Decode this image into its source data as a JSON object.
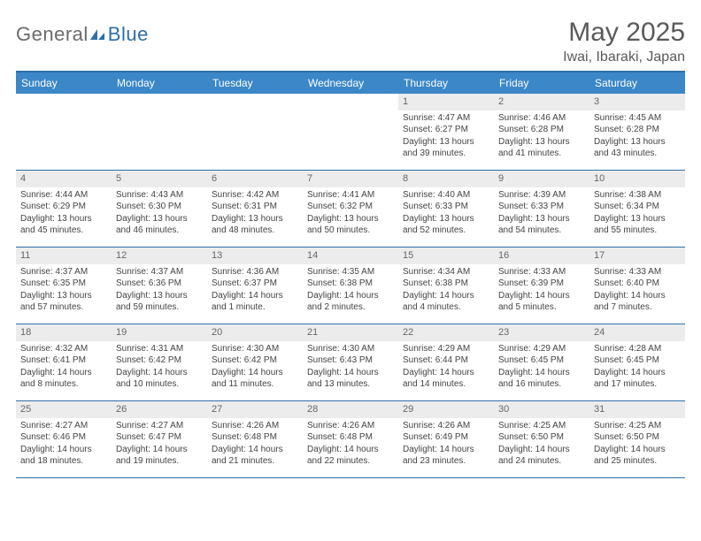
{
  "brand": {
    "text1": "General",
    "text2": "Blue",
    "icon_color": "#2f6fa8"
  },
  "title": "May 2025",
  "location": "Iwai, Ibaraki, Japan",
  "colors": {
    "header_bg": "#3b87c8",
    "border": "#2f6fa8",
    "daynum_bg": "#ececec",
    "text": "#444444"
  },
  "weekdays": [
    "Sunday",
    "Monday",
    "Tuesday",
    "Wednesday",
    "Thursday",
    "Friday",
    "Saturday"
  ],
  "weeks": [
    [
      {
        "n": "",
        "sr": "",
        "ss": "",
        "dl1": "",
        "dl2": ""
      },
      {
        "n": "",
        "sr": "",
        "ss": "",
        "dl1": "",
        "dl2": ""
      },
      {
        "n": "",
        "sr": "",
        "ss": "",
        "dl1": "",
        "dl2": ""
      },
      {
        "n": "",
        "sr": "",
        "ss": "",
        "dl1": "",
        "dl2": ""
      },
      {
        "n": "1",
        "sr": "Sunrise: 4:47 AM",
        "ss": "Sunset: 6:27 PM",
        "dl1": "Daylight: 13 hours",
        "dl2": "and 39 minutes."
      },
      {
        "n": "2",
        "sr": "Sunrise: 4:46 AM",
        "ss": "Sunset: 6:28 PM",
        "dl1": "Daylight: 13 hours",
        "dl2": "and 41 minutes."
      },
      {
        "n": "3",
        "sr": "Sunrise: 4:45 AM",
        "ss": "Sunset: 6:28 PM",
        "dl1": "Daylight: 13 hours",
        "dl2": "and 43 minutes."
      }
    ],
    [
      {
        "n": "4",
        "sr": "Sunrise: 4:44 AM",
        "ss": "Sunset: 6:29 PM",
        "dl1": "Daylight: 13 hours",
        "dl2": "and 45 minutes."
      },
      {
        "n": "5",
        "sr": "Sunrise: 4:43 AM",
        "ss": "Sunset: 6:30 PM",
        "dl1": "Daylight: 13 hours",
        "dl2": "and 46 minutes."
      },
      {
        "n": "6",
        "sr": "Sunrise: 4:42 AM",
        "ss": "Sunset: 6:31 PM",
        "dl1": "Daylight: 13 hours",
        "dl2": "and 48 minutes."
      },
      {
        "n": "7",
        "sr": "Sunrise: 4:41 AM",
        "ss": "Sunset: 6:32 PM",
        "dl1": "Daylight: 13 hours",
        "dl2": "and 50 minutes."
      },
      {
        "n": "8",
        "sr": "Sunrise: 4:40 AM",
        "ss": "Sunset: 6:33 PM",
        "dl1": "Daylight: 13 hours",
        "dl2": "and 52 minutes."
      },
      {
        "n": "9",
        "sr": "Sunrise: 4:39 AM",
        "ss": "Sunset: 6:33 PM",
        "dl1": "Daylight: 13 hours",
        "dl2": "and 54 minutes."
      },
      {
        "n": "10",
        "sr": "Sunrise: 4:38 AM",
        "ss": "Sunset: 6:34 PM",
        "dl1": "Daylight: 13 hours",
        "dl2": "and 55 minutes."
      }
    ],
    [
      {
        "n": "11",
        "sr": "Sunrise: 4:37 AM",
        "ss": "Sunset: 6:35 PM",
        "dl1": "Daylight: 13 hours",
        "dl2": "and 57 minutes."
      },
      {
        "n": "12",
        "sr": "Sunrise: 4:37 AM",
        "ss": "Sunset: 6:36 PM",
        "dl1": "Daylight: 13 hours",
        "dl2": "and 59 minutes."
      },
      {
        "n": "13",
        "sr": "Sunrise: 4:36 AM",
        "ss": "Sunset: 6:37 PM",
        "dl1": "Daylight: 14 hours",
        "dl2": "and 1 minute."
      },
      {
        "n": "14",
        "sr": "Sunrise: 4:35 AM",
        "ss": "Sunset: 6:38 PM",
        "dl1": "Daylight: 14 hours",
        "dl2": "and 2 minutes."
      },
      {
        "n": "15",
        "sr": "Sunrise: 4:34 AM",
        "ss": "Sunset: 6:38 PM",
        "dl1": "Daylight: 14 hours",
        "dl2": "and 4 minutes."
      },
      {
        "n": "16",
        "sr": "Sunrise: 4:33 AM",
        "ss": "Sunset: 6:39 PM",
        "dl1": "Daylight: 14 hours",
        "dl2": "and 5 minutes."
      },
      {
        "n": "17",
        "sr": "Sunrise: 4:33 AM",
        "ss": "Sunset: 6:40 PM",
        "dl1": "Daylight: 14 hours",
        "dl2": "and 7 minutes."
      }
    ],
    [
      {
        "n": "18",
        "sr": "Sunrise: 4:32 AM",
        "ss": "Sunset: 6:41 PM",
        "dl1": "Daylight: 14 hours",
        "dl2": "and 8 minutes."
      },
      {
        "n": "19",
        "sr": "Sunrise: 4:31 AM",
        "ss": "Sunset: 6:42 PM",
        "dl1": "Daylight: 14 hours",
        "dl2": "and 10 minutes."
      },
      {
        "n": "20",
        "sr": "Sunrise: 4:30 AM",
        "ss": "Sunset: 6:42 PM",
        "dl1": "Daylight: 14 hours",
        "dl2": "and 11 minutes."
      },
      {
        "n": "21",
        "sr": "Sunrise: 4:30 AM",
        "ss": "Sunset: 6:43 PM",
        "dl1": "Daylight: 14 hours",
        "dl2": "and 13 minutes."
      },
      {
        "n": "22",
        "sr": "Sunrise: 4:29 AM",
        "ss": "Sunset: 6:44 PM",
        "dl1": "Daylight: 14 hours",
        "dl2": "and 14 minutes."
      },
      {
        "n": "23",
        "sr": "Sunrise: 4:29 AM",
        "ss": "Sunset: 6:45 PM",
        "dl1": "Daylight: 14 hours",
        "dl2": "and 16 minutes."
      },
      {
        "n": "24",
        "sr": "Sunrise: 4:28 AM",
        "ss": "Sunset: 6:45 PM",
        "dl1": "Daylight: 14 hours",
        "dl2": "and 17 minutes."
      }
    ],
    [
      {
        "n": "25",
        "sr": "Sunrise: 4:27 AM",
        "ss": "Sunset: 6:46 PM",
        "dl1": "Daylight: 14 hours",
        "dl2": "and 18 minutes."
      },
      {
        "n": "26",
        "sr": "Sunrise: 4:27 AM",
        "ss": "Sunset: 6:47 PM",
        "dl1": "Daylight: 14 hours",
        "dl2": "and 19 minutes."
      },
      {
        "n": "27",
        "sr": "Sunrise: 4:26 AM",
        "ss": "Sunset: 6:48 PM",
        "dl1": "Daylight: 14 hours",
        "dl2": "and 21 minutes."
      },
      {
        "n": "28",
        "sr": "Sunrise: 4:26 AM",
        "ss": "Sunset: 6:48 PM",
        "dl1": "Daylight: 14 hours",
        "dl2": "and 22 minutes."
      },
      {
        "n": "29",
        "sr": "Sunrise: 4:26 AM",
        "ss": "Sunset: 6:49 PM",
        "dl1": "Daylight: 14 hours",
        "dl2": "and 23 minutes."
      },
      {
        "n": "30",
        "sr": "Sunrise: 4:25 AM",
        "ss": "Sunset: 6:50 PM",
        "dl1": "Daylight: 14 hours",
        "dl2": "and 24 minutes."
      },
      {
        "n": "31",
        "sr": "Sunrise: 4:25 AM",
        "ss": "Sunset: 6:50 PM",
        "dl1": "Daylight: 14 hours",
        "dl2": "and 25 minutes."
      }
    ]
  ]
}
